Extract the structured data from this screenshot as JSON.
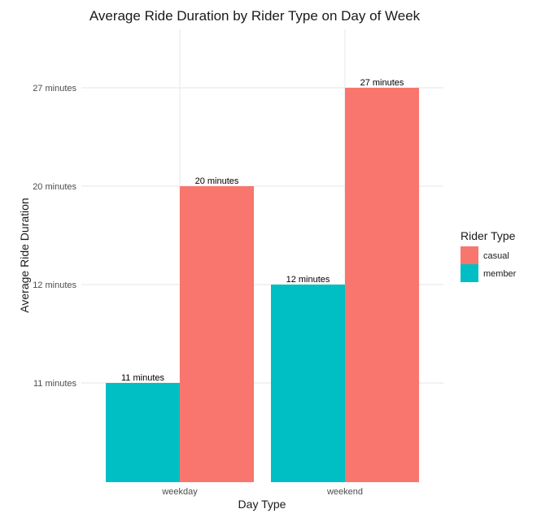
{
  "chart_data": {
    "type": "bar",
    "title": "Average Ride Duration by Rider Type on Day of Week",
    "xlabel": "Day Type",
    "ylabel": "Average Ride Duration",
    "categories": [
      "weekday",
      "weekend"
    ],
    "y_axis_kind": "discrete",
    "y_levels": [
      "11 minutes",
      "12 minutes",
      "20 minutes",
      "27 minutes"
    ],
    "series": [
      {
        "name": "member",
        "color": "#00BFC4",
        "values": [
          "11 minutes",
          "12 minutes"
        ],
        "labels": [
          "11 minutes",
          "12 minutes"
        ]
      },
      {
        "name": "casual",
        "color": "#F8766D",
        "values": [
          "20 minutes",
          "27 minutes"
        ],
        "labels": [
          "20 minutes",
          "27 minutes"
        ]
      }
    ],
    "grid": true,
    "legend": {
      "title": "Rider Type",
      "position": "right",
      "entries": [
        "casual",
        "member"
      ]
    }
  }
}
